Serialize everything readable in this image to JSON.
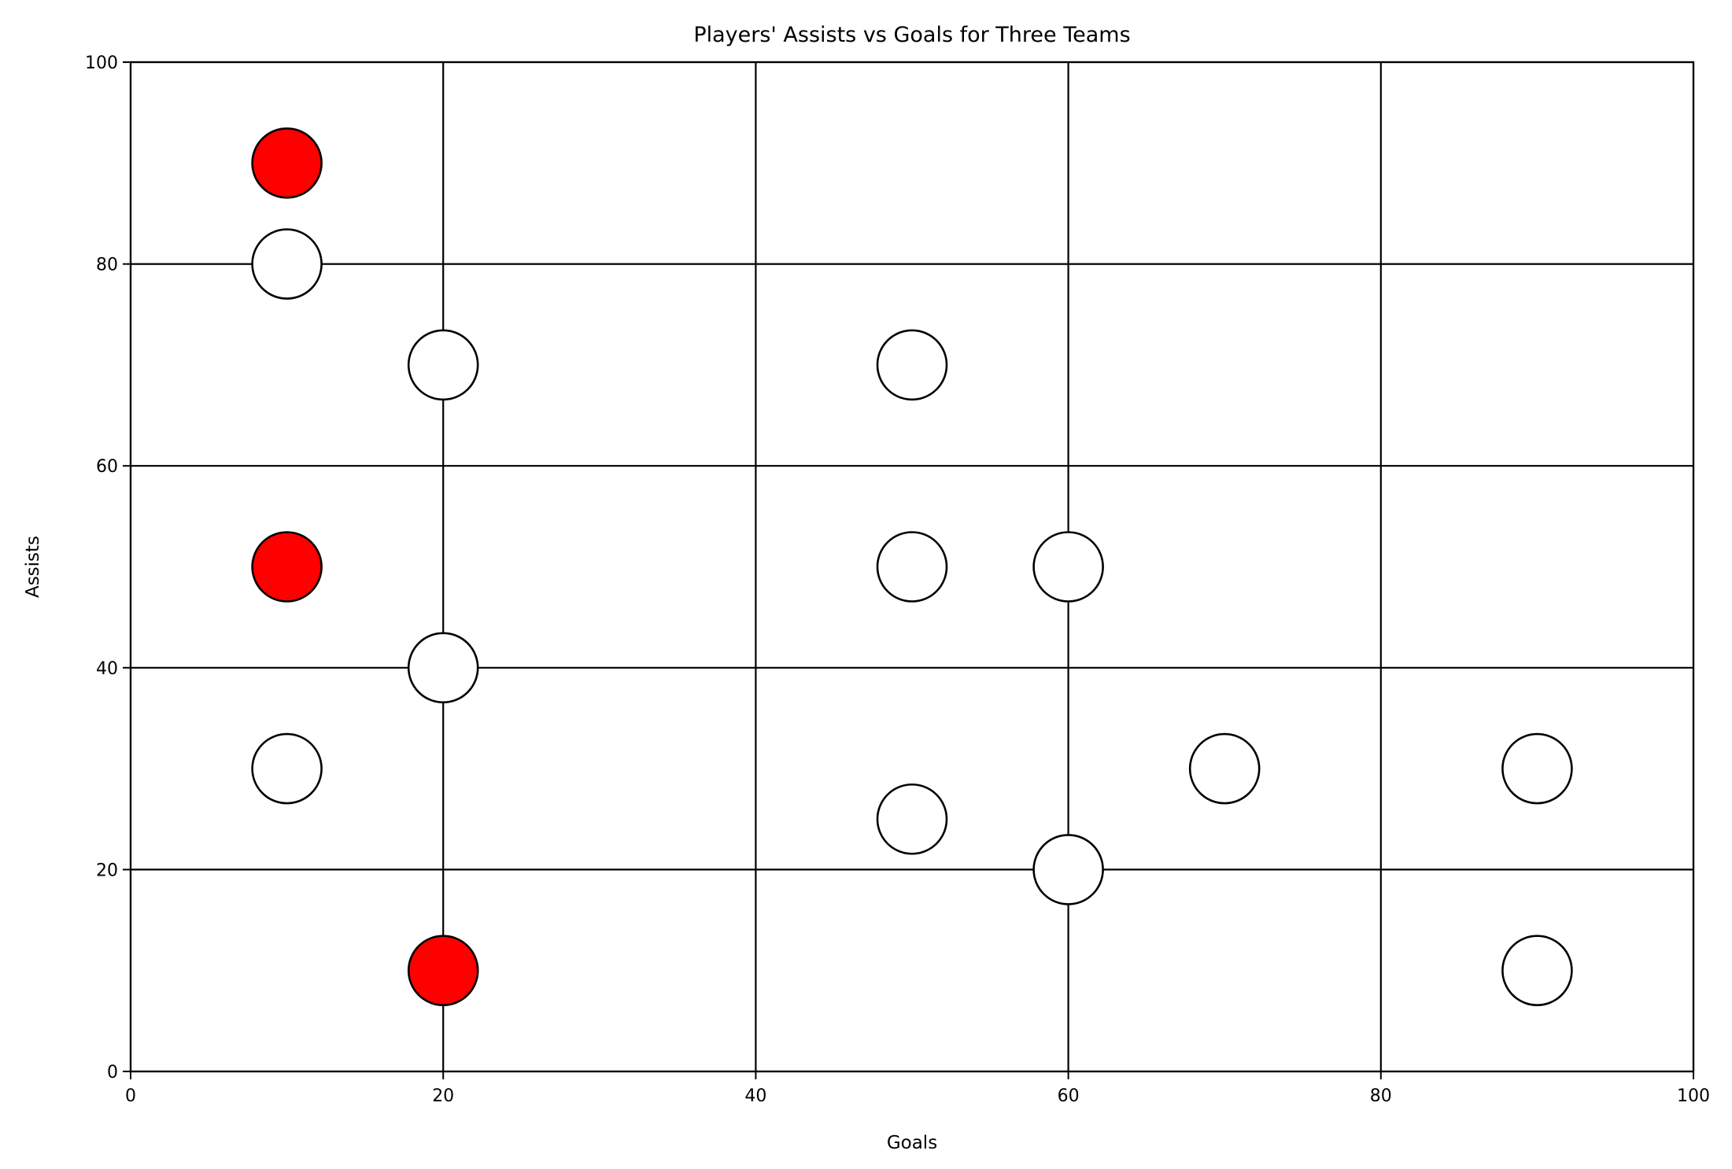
{
  "chart_data": {
    "type": "scatter",
    "title": "Players' Assists vs Goals for Three Teams",
    "xlabel": "Goals",
    "ylabel": "Assists",
    "xlim": [
      0,
      100
    ],
    "ylim": [
      0,
      100
    ],
    "xticks": [
      0,
      20,
      40,
      60,
      80,
      100
    ],
    "yticks": [
      0,
      20,
      40,
      60,
      80,
      100
    ],
    "xtick_labels": [
      "0",
      "20",
      "40",
      "60",
      "80",
      "100"
    ],
    "ytick_labels": [
      "0",
      "20",
      "40",
      "60",
      "80",
      "100"
    ],
    "grid": true,
    "legend": "none",
    "series": [
      {
        "color": "#ff0000",
        "points": [
          {
            "x": 10,
            "y": 90
          },
          {
            "x": 10,
            "y": 50
          },
          {
            "x": 20,
            "y": 10
          }
        ]
      },
      {
        "color": "#ffffff",
        "points": [
          {
            "x": 10,
            "y": 80
          },
          {
            "x": 20,
            "y": 70
          },
          {
            "x": 20,
            "y": 40
          },
          {
            "x": 10,
            "y": 30
          },
          {
            "x": 50,
            "y": 70
          },
          {
            "x": 50,
            "y": 50
          },
          {
            "x": 50,
            "y": 25
          },
          {
            "x": 60,
            "y": 50
          },
          {
            "x": 60,
            "y": 20
          },
          {
            "x": 70,
            "y": 30
          },
          {
            "x": 90,
            "y": 30
          },
          {
            "x": 90,
            "y": 10
          }
        ]
      }
    ]
  }
}
